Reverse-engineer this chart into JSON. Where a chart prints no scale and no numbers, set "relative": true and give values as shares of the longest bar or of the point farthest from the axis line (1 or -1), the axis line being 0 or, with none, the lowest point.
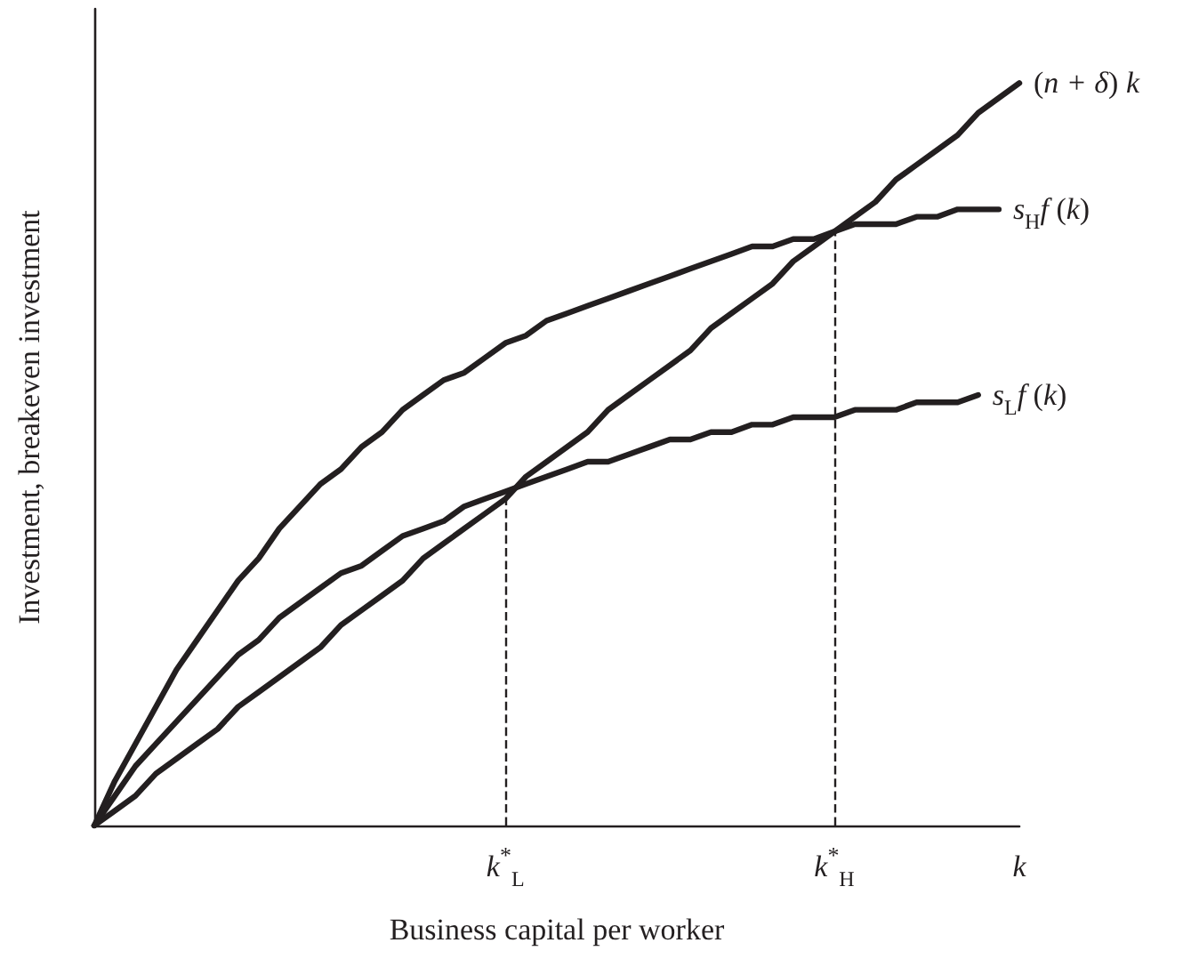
{
  "chart_data": {
    "type": "line",
    "relative": true,
    "xlabel": "Business capital per worker",
    "ylabel": "Investment, breakeven investment",
    "categories": [
      null,
      null,
      null,
      null,
      null,
      null,
      null,
      null,
      null,
      null,
      null,
      null,
      null,
      null,
      null,
      null,
      null,
      null,
      null,
      null,
      "k$^{*}$$_{L}$",
      null,
      null,
      null,
      null,
      null,
      null,
      null,
      null,
      null,
      null,
      null,
      null,
      null,
      null,
      null,
      "k$^{*}$$_{H}$",
      null,
      null,
      null,
      null,
      null,
      null,
      null,
      null,
      "k"
    ],
    "series": [
      {
        "name": "(n + δ) k",
        "color": "#231f20",
        "values": [
          0,
          0.02,
          0.04,
          0.07,
          0.09,
          0.11,
          0.13,
          0.16,
          0.18,
          0.2,
          0.22,
          0.24,
          0.27,
          0.29,
          0.31,
          0.33,
          0.36,
          0.38,
          0.4,
          0.42,
          0.44,
          0.47,
          0.49,
          0.51,
          0.53,
          0.56,
          0.58,
          0.6,
          0.62,
          0.64,
          0.67,
          0.69,
          0.71,
          0.73,
          0.76,
          0.78,
          0.8,
          0.82,
          0.84,
          0.87,
          0.89,
          0.91,
          0.93,
          0.96,
          0.98,
          1
        ]
      },
      {
        "name": "s$_{H}$f (k)",
        "color": "#231f20",
        "values": [
          0,
          0.06,
          0.11,
          0.16,
          0.21,
          0.25,
          0.29,
          0.33,
          0.36,
          0.4,
          0.43,
          0.46,
          0.48,
          0.51,
          0.53,
          0.56,
          0.58,
          0.6,
          0.61,
          0.63,
          0.65,
          0.66,
          0.68,
          0.69,
          0.7,
          0.71,
          0.72,
          0.73,
          0.74,
          0.75,
          0.76,
          0.77,
          0.78,
          0.78,
          0.79,
          0.79,
          0.8,
          0.81,
          0.81,
          0.81,
          0.82,
          0.82,
          0.83,
          0.83,
          0.83,
          null
        ]
      },
      {
        "name": "s$_{L}$f (k)",
        "color": "#231f20",
        "values": [
          0,
          0.04,
          0.08,
          0.11,
          0.14,
          0.17,
          0.2,
          0.23,
          0.25,
          0.28,
          0.3,
          0.32,
          0.34,
          0.35,
          0.37,
          0.39,
          0.4,
          0.41,
          0.43,
          0.44,
          0.45,
          0.46,
          0.47,
          0.48,
          0.49,
          0.49,
          0.5,
          0.51,
          0.52,
          0.52,
          0.53,
          0.53,
          0.54,
          0.54,
          0.55,
          0.55,
          0.55,
          0.56,
          0.56,
          0.56,
          0.57,
          0.57,
          0.57,
          0.58,
          null,
          null
        ]
      }
    ],
    "ref_lines": [
      {
        "axis": "x",
        "value": "k$^{*}$$_{L}$",
        "label": null,
        "line_style": "dashed"
      },
      {
        "axis": "x",
        "value": "k$^{*}$$_{H}$",
        "label": null,
        "line_style": "dashed"
      }
    ],
    "grid": false,
    "legend": false,
    "marker": "none",
    "line_style": "solid"
  }
}
